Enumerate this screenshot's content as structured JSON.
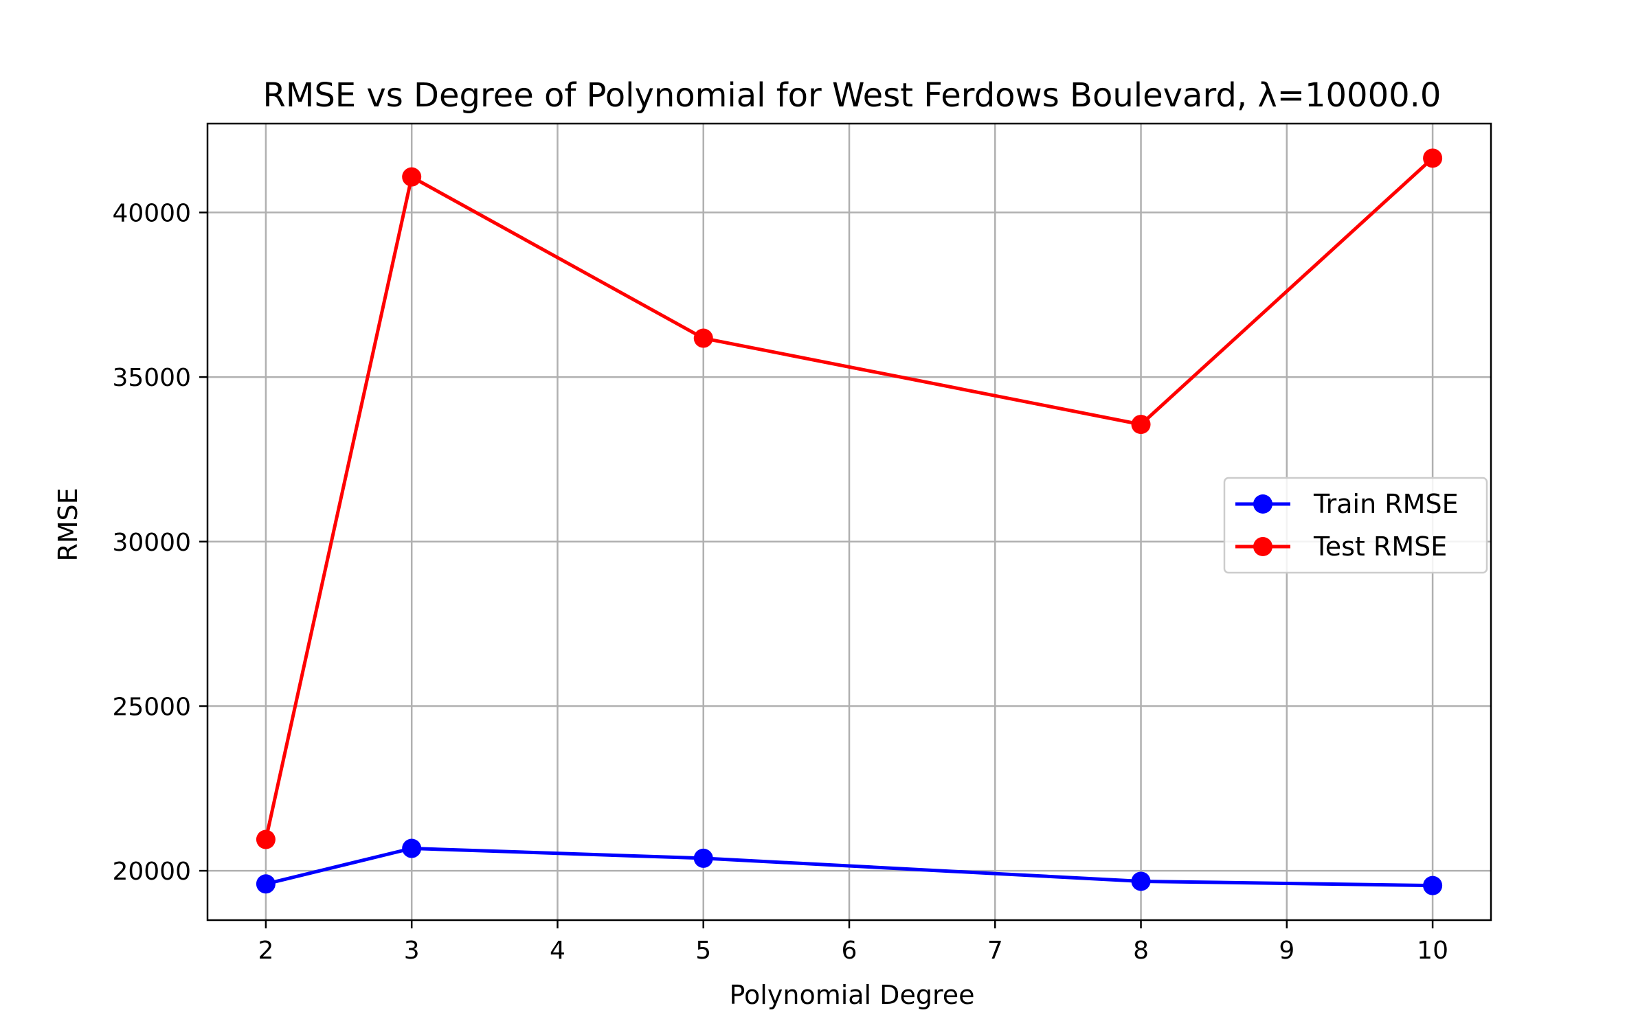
{
  "chart_data": {
    "type": "line",
    "title": "RMSE vs Degree of Polynomial for West Ferdows Boulevard, λ=10000.0",
    "xlabel": "Polynomial Degree",
    "ylabel": "RMSE",
    "x": [
      2,
      3,
      5,
      8,
      10
    ],
    "xticks": [
      2,
      3,
      4,
      5,
      6,
      7,
      8,
      9,
      10
    ],
    "xlim": [
      1.6,
      10.4
    ],
    "yticks": [
      20000,
      25000,
      30000,
      35000,
      40000
    ],
    "ylim": [
      18500,
      42700
    ],
    "grid": true,
    "legend_position": "center-right",
    "series": [
      {
        "name": "Train RMSE",
        "color": "#0000ff",
        "marker": "circle",
        "values": [
          19600,
          20680,
          20380,
          19680,
          19550
        ]
      },
      {
        "name": "Test RMSE",
        "color": "#ff0000",
        "marker": "circle",
        "values": [
          20950,
          41080,
          36180,
          33560,
          41650
        ]
      }
    ]
  }
}
